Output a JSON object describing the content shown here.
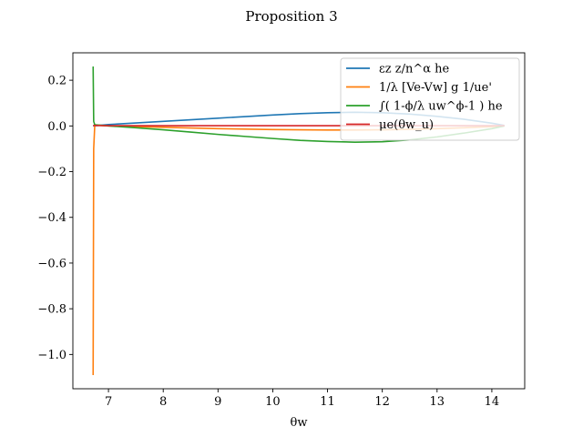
{
  "chart_data": {
    "type": "line",
    "title": "Proposition 3",
    "xlabel": "θw",
    "ylabel": "",
    "xlim": [
      6.35,
      14.6
    ],
    "ylim": [
      -1.15,
      0.32
    ],
    "xticks": [
      7,
      8,
      9,
      10,
      11,
      12,
      13,
      14
    ],
    "yticks": [
      0.2,
      0.0,
      -0.2,
      -0.4,
      -0.6,
      -0.8,
      -1.0
    ],
    "ytick_labels": [
      "0.2",
      "0.0",
      "−0.2",
      "−0.4",
      "−0.6",
      "−0.8",
      "−1.0"
    ],
    "grid": false,
    "legend_position": "top-right",
    "series": [
      {
        "name": "εz z/n^α he",
        "color": "#1f77b4",
        "x": [
          6.72,
          7.0,
          7.5,
          8.0,
          8.5,
          9.0,
          9.5,
          10.0,
          10.5,
          11.0,
          11.5,
          12.0,
          12.5,
          13.0,
          13.5,
          14.0,
          14.23
        ],
        "y": [
          0.0,
          0.006,
          0.013,
          0.02,
          0.027,
          0.034,
          0.041,
          0.048,
          0.054,
          0.058,
          0.06,
          0.058,
          0.052,
          0.042,
          0.029,
          0.012,
          0.002
        ]
      },
      {
        "name": "1/λ [Ve-Vw] g 1/ue'",
        "color": "#ff7f0e",
        "x": [
          6.72,
          6.73,
          6.75,
          6.8,
          7.0,
          7.5,
          8.0,
          8.5,
          9.0,
          9.5,
          10.0,
          10.5,
          11.0,
          11.5,
          12.0,
          12.5,
          13.0,
          13.5,
          14.0,
          14.23
        ],
        "y": [
          -1.09,
          -0.1,
          0.005,
          0.003,
          0.0,
          -0.003,
          -0.006,
          -0.009,
          -0.012,
          -0.014,
          -0.016,
          -0.017,
          -0.018,
          -0.018,
          -0.017,
          -0.015,
          -0.012,
          -0.008,
          -0.003,
          0.0
        ]
      },
      {
        "name": "∫( 1-ϕ/λ uw^ϕ-1 ) he",
        "color": "#2ca02c",
        "x": [
          6.72,
          6.73,
          6.75,
          6.8,
          7.0,
          7.5,
          8.0,
          8.5,
          9.0,
          9.5,
          10.0,
          10.5,
          11.0,
          11.5,
          12.0,
          12.5,
          13.0,
          13.5,
          14.0,
          14.23
        ],
        "y": [
          0.26,
          0.02,
          0.005,
          0.004,
          0.0,
          -0.008,
          -0.017,
          -0.027,
          -0.037,
          -0.046,
          -0.055,
          -0.063,
          -0.068,
          -0.071,
          -0.069,
          -0.061,
          -0.048,
          -0.031,
          -0.012,
          0.0
        ]
      },
      {
        "name": "μe(θw_u)",
        "color": "#d62728",
        "x": [
          6.72,
          7.0,
          8.0,
          9.0,
          10.0,
          11.0,
          12.0,
          13.0,
          14.0,
          14.23
        ],
        "y": [
          0.002,
          0.001,
          0.001,
          0.001,
          0.001,
          0.001,
          0.001,
          0.001,
          0.001,
          0.001
        ]
      }
    ]
  }
}
